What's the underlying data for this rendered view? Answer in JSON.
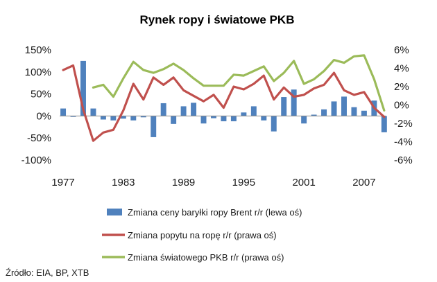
{
  "chart_data": {
    "type": "bar+line",
    "title": "Rynek ropy i światowe PKB",
    "x": [
      1977,
      1978,
      1979,
      1980,
      1981,
      1982,
      1983,
      1984,
      1985,
      1986,
      1987,
      1988,
      1989,
      1990,
      1991,
      1992,
      1993,
      1994,
      1995,
      1996,
      1997,
      1998,
      1999,
      2000,
      2001,
      2002,
      2003,
      2004,
      2005,
      2006,
      2007,
      2008,
      2009
    ],
    "x_ticks": [
      "1977",
      "1983",
      "1989",
      "1995",
      "2001",
      "2007"
    ],
    "y_left": {
      "ticks": [
        "150%",
        "100%",
        "50%",
        "0%",
        "-50%",
        "-100%"
      ],
      "range": [
        -100,
        150
      ]
    },
    "y_right": {
      "ticks": [
        "6%",
        "4%",
        "2%",
        "0%",
        "-2%",
        "-4%",
        "-6%"
      ],
      "range": [
        -6,
        6
      ]
    },
    "series": [
      {
        "name": "Zmiana ceny baryłki ropy Brent r/r (lewa oś)",
        "type": "bar",
        "axis": "left",
        "color": "#4f81bd",
        "values": [
          17,
          -2,
          125,
          17,
          -8,
          -10,
          -6,
          -10,
          -3,
          -48,
          29,
          -18,
          22,
          30,
          -17,
          -5,
          -12,
          -12,
          8,
          22,
          -10,
          -35,
          43,
          60,
          -17,
          3,
          15,
          33,
          44,
          20,
          12,
          35,
          -37
        ]
      },
      {
        "name": "Zmiana popytu na ropę r/r (prawa oś)",
        "type": "line",
        "axis": "right",
        "color": "#c0504d",
        "values": [
          3.8,
          4.3,
          -0.5,
          -3.9,
          -3.0,
          -2.7,
          -0.6,
          2.3,
          0.6,
          3.0,
          2.2,
          3.0,
          1.6,
          1.0,
          0.4,
          1.1,
          -0.3,
          2.0,
          1.7,
          2.3,
          3.2,
          0.6,
          1.9,
          0.9,
          1.1,
          1.8,
          2.2,
          3.5,
          1.6,
          1.1,
          1.4,
          -0.3,
          -1.3
        ]
      },
      {
        "name": "Zmiana światowego PKB r/r (prawa oś)",
        "type": "line",
        "axis": "right",
        "color": "#9bbb59",
        "values": [
          null,
          null,
          null,
          1.9,
          2.2,
          0.9,
          2.9,
          4.7,
          3.8,
          3.5,
          3.9,
          4.5,
          3.8,
          2.9,
          2.1,
          2.1,
          2.1,
          3.3,
          3.2,
          3.7,
          4.2,
          2.6,
          3.5,
          4.8,
          2.3,
          2.8,
          3.7,
          4.9,
          4.6,
          5.3,
          5.4,
          2.8,
          -0.6
        ]
      }
    ],
    "legend_position": "bottom",
    "grid": false
  },
  "source_text": "Źródło: EIA, BP, XTB"
}
